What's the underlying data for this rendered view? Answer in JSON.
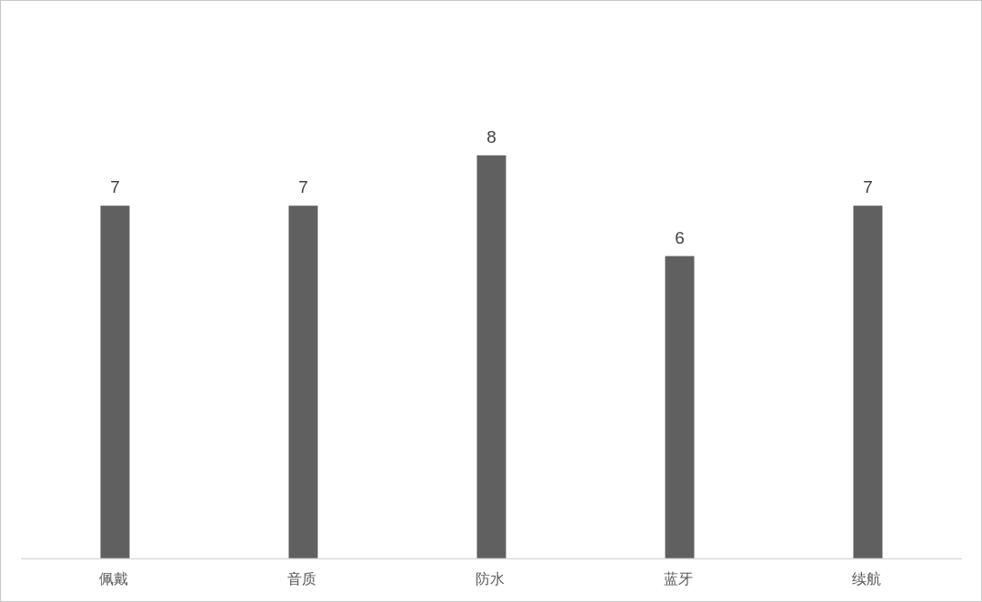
{
  "chart_data": {
    "type": "bar",
    "categories": [
      "佩戴",
      "音质",
      "防水",
      "蓝牙",
      "续航"
    ],
    "values": [
      7,
      7,
      8,
      6,
      7
    ],
    "color": "#606060",
    "data_labels": true
  }
}
